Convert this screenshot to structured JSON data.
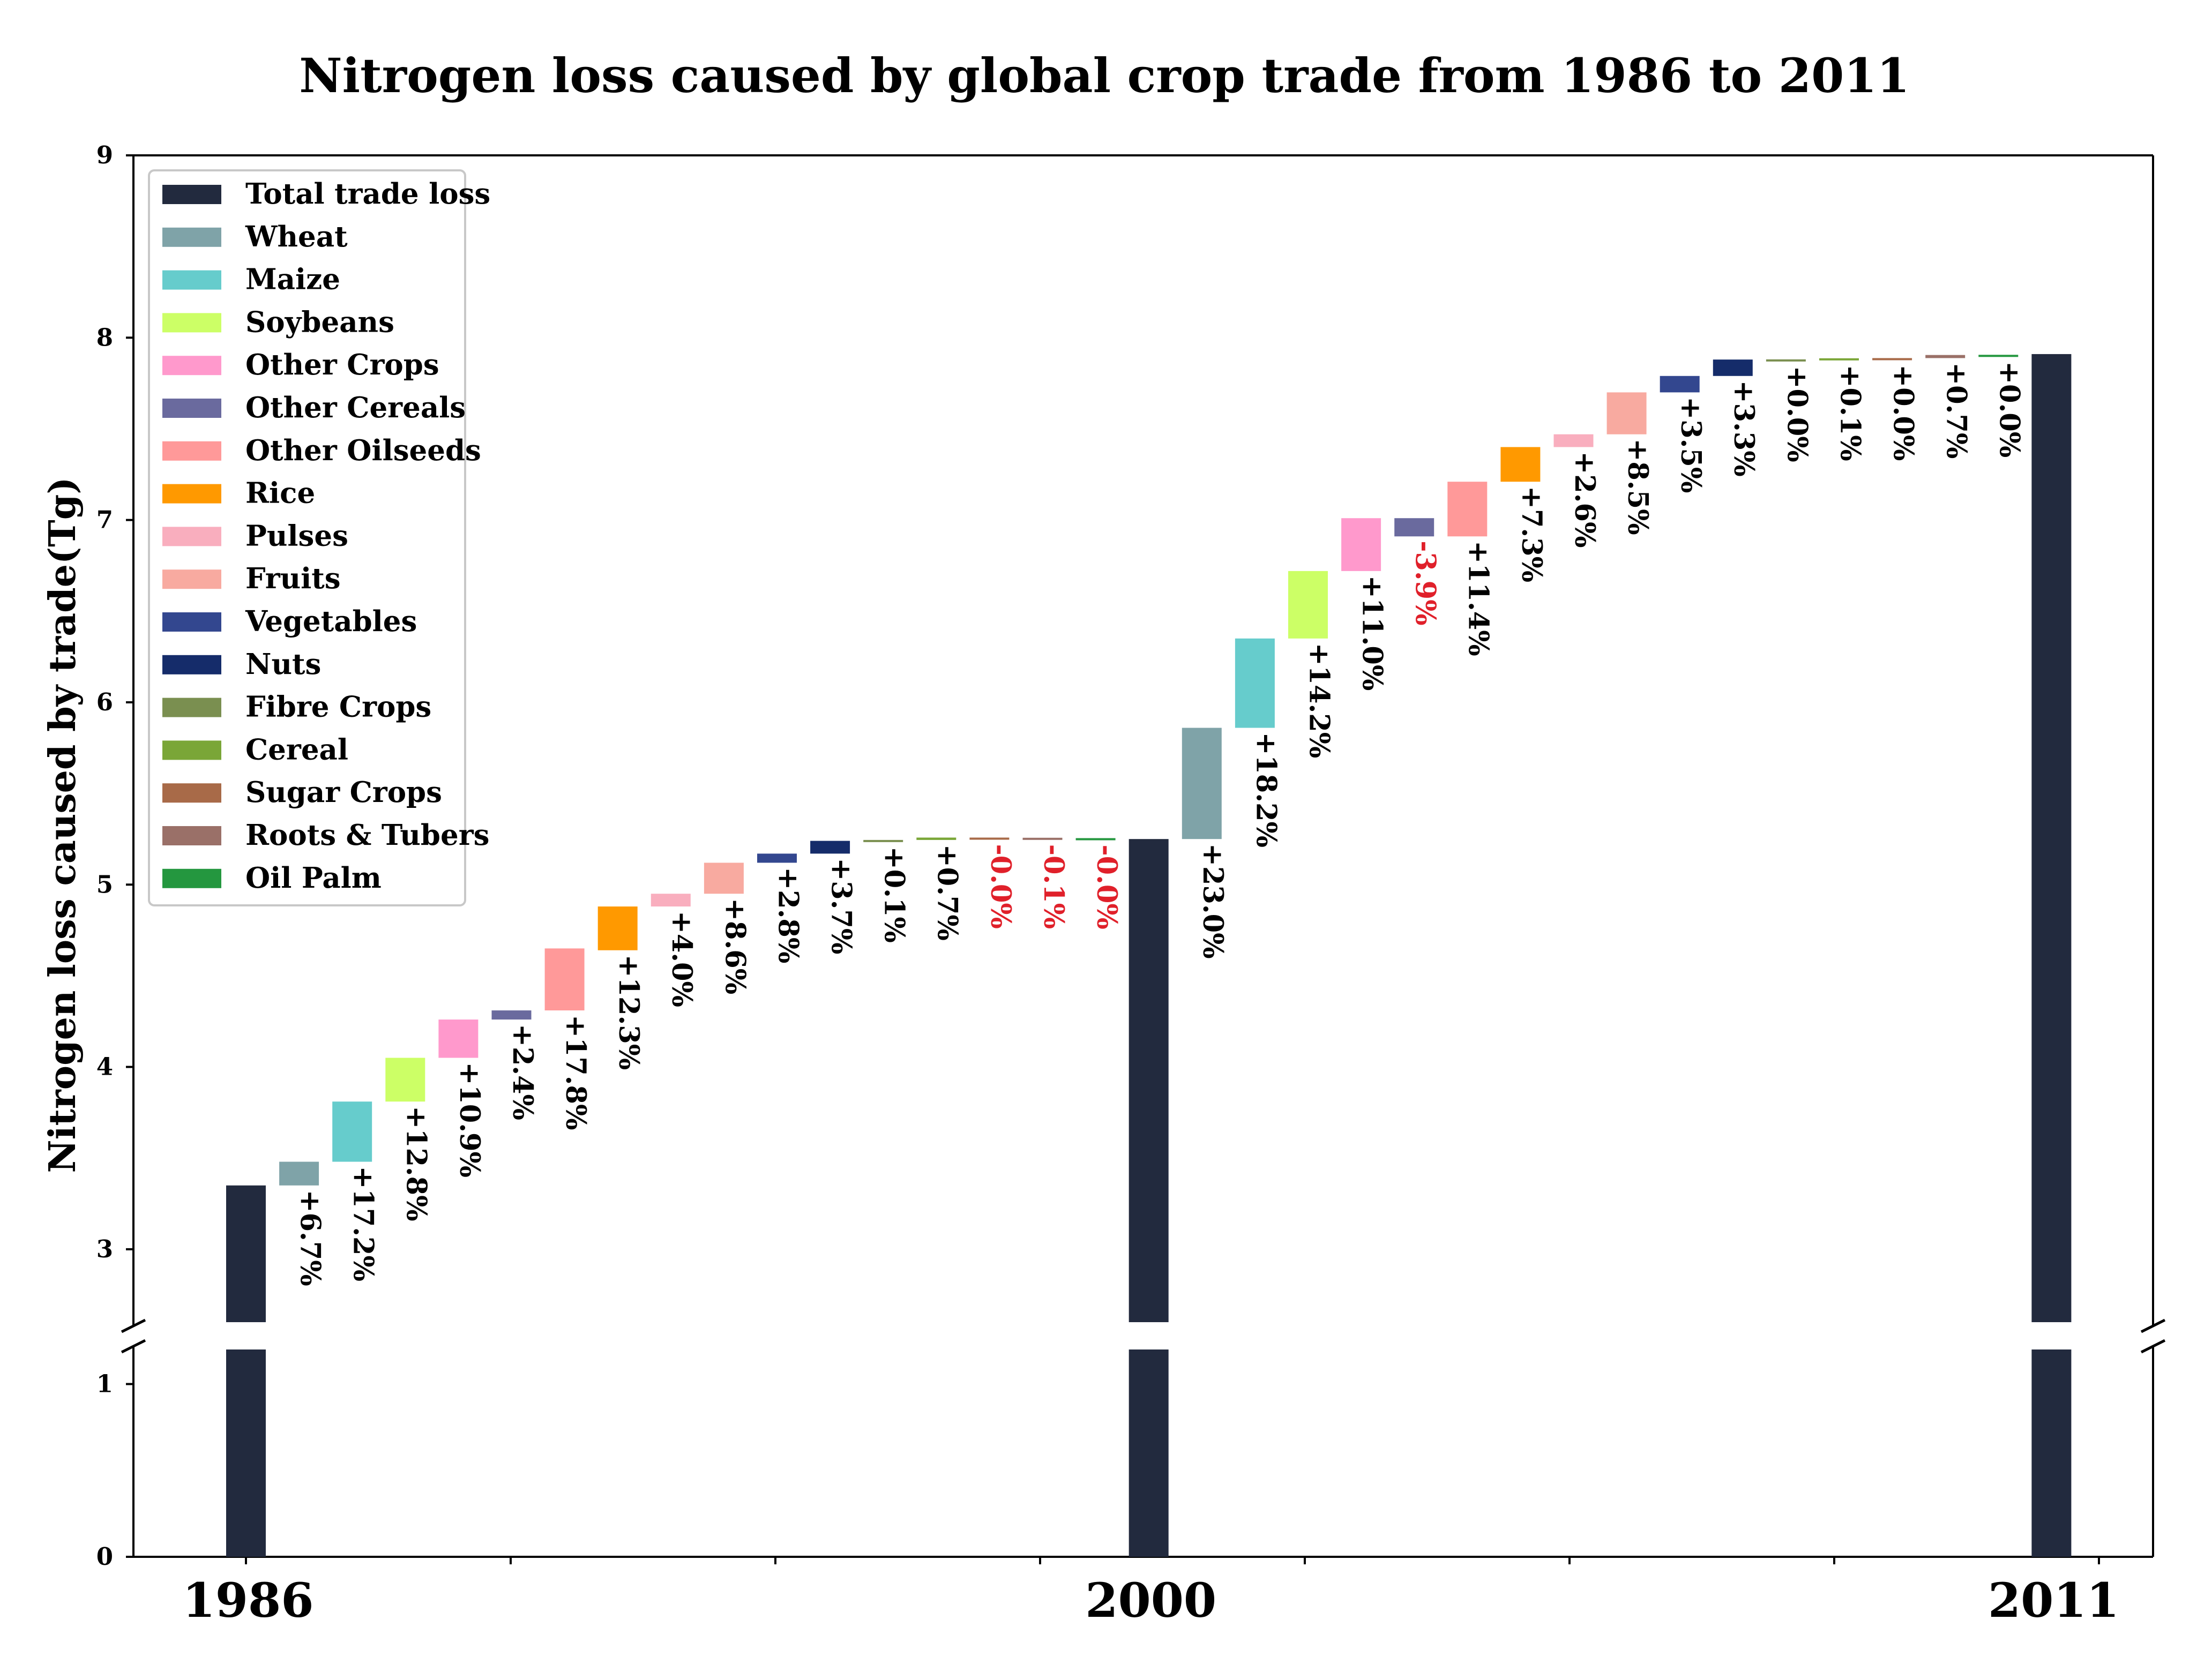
{
  "chart_data": {
    "type": "bar",
    "subtype": "waterfall",
    "title": "Nitrogen loss caused by global crop trade from 1986 to 2011",
    "xlabel": "",
    "ylabel": "Nitrogen loss caused by trade(Tg)",
    "ylim_lower": [
      0,
      1.2
    ],
    "ylim_upper": [
      2.6,
      9
    ],
    "yticks": [
      "0",
      "1",
      "3",
      "4",
      "5",
      "6",
      "7",
      "8",
      "9"
    ],
    "ytick_values": [
      0,
      1,
      3,
      4,
      5,
      6,
      7,
      8,
      9
    ],
    "legend_position": "top-left",
    "categories": [
      "1986",
      "2000",
      "2011"
    ],
    "legend": [
      {
        "name": "Total trade loss",
        "color": "#222a3e"
      },
      {
        "name": "Wheat",
        "color": "#7fa3a8"
      },
      {
        "name": "Maize",
        "color": "#66cccc"
      },
      {
        "name": "Soybeans",
        "color": "#ccff66"
      },
      {
        "name": "Other Crops",
        "color": "#ff99cc"
      },
      {
        "name": "Other Cereals",
        "color": "#6a6a9e"
      },
      {
        "name": "Other Oilseeds",
        "color": "#ff9999"
      },
      {
        "name": "Rice",
        "color": "#ff9900"
      },
      {
        "name": "Pulses",
        "color": "#f9aebe"
      },
      {
        "name": "Fruits",
        "color": "#f8aaa0"
      },
      {
        "name": "Vegetables",
        "color": "#33478f"
      },
      {
        "name": "Nuts",
        "color": "#152c6a"
      },
      {
        "name": "Fibre Crops",
        "color": "#7a8f50"
      },
      {
        "name": "Cereal",
        "color": "#7aa637"
      },
      {
        "name": "Sugar Crops",
        "color": "#a86a48"
      },
      {
        "name": "Roots & Tubers",
        "color": "#9a7068"
      },
      {
        "name": "Oil Palm",
        "color": "#24973f"
      }
    ],
    "totals": [
      {
        "name": "1986",
        "value": 3.35
      },
      {
        "name": "2000",
        "value": 5.25
      },
      {
        "name": "2011",
        "value": 7.91
      }
    ],
    "series": [
      {
        "name": "1986 to 2000",
        "steps": [
          {
            "crop": "Wheat",
            "from": 3.35,
            "to": 3.48,
            "label": "+6.7%"
          },
          {
            "crop": "Maize",
            "from": 3.48,
            "to": 3.81,
            "label": "+17.2%"
          },
          {
            "crop": "Soybeans",
            "from": 3.81,
            "to": 4.05,
            "label": "+12.8%"
          },
          {
            "crop": "Other Crops",
            "from": 4.05,
            "to": 4.26,
            "label": "+10.9%"
          },
          {
            "crop": "Other Cereals",
            "from": 4.26,
            "to": 4.31,
            "label": "+2.4%"
          },
          {
            "crop": "Other Oilseeds",
            "from": 4.31,
            "to": 4.65,
            "label": "+17.8%"
          },
          {
            "crop": "Rice",
            "from": 4.64,
            "to": 4.88,
            "label": "+12.3%"
          },
          {
            "crop": "Pulses",
            "from": 4.88,
            "to": 4.95,
            "label": "+4.0%"
          },
          {
            "crop": "Fruits",
            "from": 4.95,
            "to": 5.12,
            "label": "+8.6%"
          },
          {
            "crop": "Vegetables",
            "from": 5.12,
            "to": 5.17,
            "label": "+2.8%"
          },
          {
            "crop": "Nuts",
            "from": 5.17,
            "to": 5.24,
            "label": "+3.7%"
          },
          {
            "crop": "Fibre Crops",
            "from": 5.24,
            "to": 5.245,
            "label": "+0.1%"
          },
          {
            "crop": "Cereal",
            "from": 5.245,
            "to": 5.258,
            "label": "+0.7%"
          },
          {
            "crop": "Sugar Crops",
            "from": 5.258,
            "to": 5.257,
            "label": "-0.0%"
          },
          {
            "crop": "Roots & Tubers",
            "from": 5.257,
            "to": 5.255,
            "label": "-0.1%"
          },
          {
            "crop": "Oil Palm",
            "from": 5.255,
            "to": 5.254,
            "label": "-0.0%"
          }
        ]
      },
      {
        "name": "2000 to 2011",
        "steps": [
          {
            "crop": "Wheat",
            "from": 5.25,
            "to": 5.86,
            "label": "+23.0%"
          },
          {
            "crop": "Maize",
            "from": 5.86,
            "to": 6.35,
            "label": "+18.2%"
          },
          {
            "crop": "Soybeans",
            "from": 6.35,
            "to": 6.72,
            "label": "+14.2%"
          },
          {
            "crop": "Other Crops",
            "from": 6.72,
            "to": 7.01,
            "label": "+11.0%"
          },
          {
            "crop": "Other Cereals",
            "from": 7.01,
            "to": 6.91,
            "label": "-3.9%"
          },
          {
            "crop": "Other Oilseeds",
            "from": 6.91,
            "to": 7.21,
            "label": "+11.4%"
          },
          {
            "crop": "Rice",
            "from": 7.21,
            "to": 7.4,
            "label": "+7.3%"
          },
          {
            "crop": "Pulses",
            "from": 7.4,
            "to": 7.47,
            "label": "+2.6%"
          },
          {
            "crop": "Fruits",
            "from": 7.47,
            "to": 7.7,
            "label": "+8.5%"
          },
          {
            "crop": "Vegetables",
            "from": 7.7,
            "to": 7.79,
            "label": "+3.5%"
          },
          {
            "crop": "Nuts",
            "from": 7.79,
            "to": 7.88,
            "label": "+3.3%"
          },
          {
            "crop": "Fibre Crops",
            "from": 7.88,
            "to": 7.881,
            "label": "+0.0%"
          },
          {
            "crop": "Cereal",
            "from": 7.881,
            "to": 7.887,
            "label": "+0.1%"
          },
          {
            "crop": "Sugar Crops",
            "from": 7.887,
            "to": 7.888,
            "label": "+0.0%"
          },
          {
            "crop": "Roots & Tubers",
            "from": 7.888,
            "to": 7.905,
            "label": "+0.7%"
          },
          {
            "crop": "Oil Palm",
            "from": 7.905,
            "to": 7.906,
            "label": "+0.0%"
          }
        ]
      }
    ],
    "colors": {
      "positive_label": "#000000",
      "negative_label": "#e0202a",
      "axis": "#000000"
    }
  }
}
